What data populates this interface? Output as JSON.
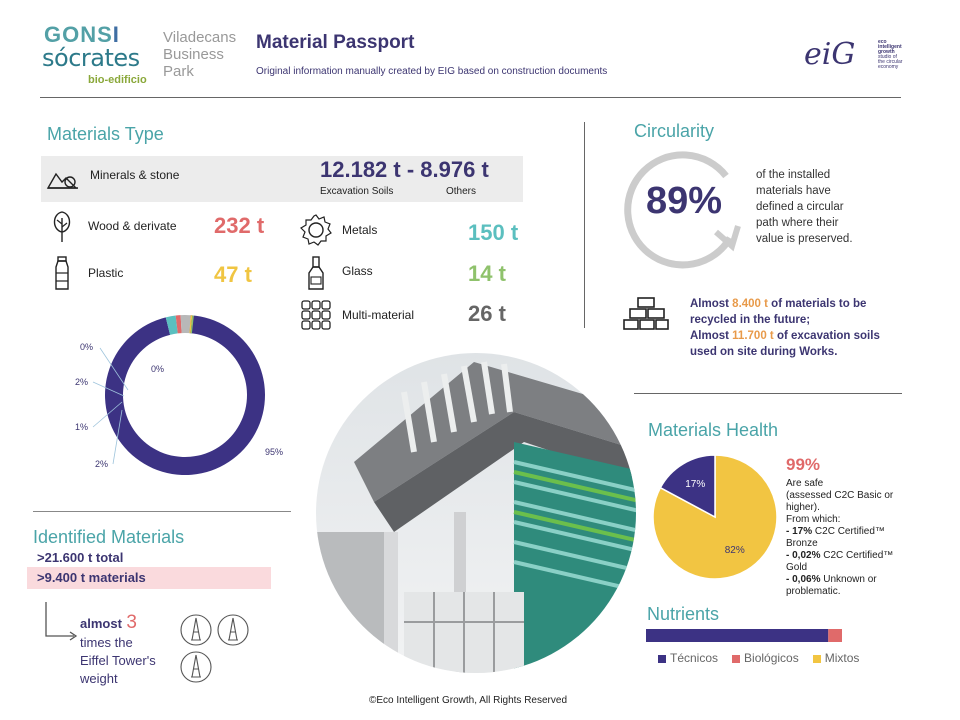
{
  "header": {
    "logo_gonsi_a": "GONS",
    "logo_gonsi_b": "I",
    "logo_socrates": "sócrates",
    "logo_bio": "bio-edificio",
    "logo_place_lines": [
      "Viladecans",
      "Business",
      "Park"
    ],
    "title": "Material Passport",
    "subtitle": "Original information manually created by EIG based on construction documents",
    "eig_mark": "eiG",
    "eig_tagline_lines": [
      "eco",
      "intelligent",
      "growth",
      "studio of",
      "the circular",
      "economy"
    ]
  },
  "materials_type": {
    "title": "Materials Type",
    "minerals": {
      "label": "Minerals & stone",
      "value": "12.182 t - 8.976 t",
      "sub_a": "Excavation Soils",
      "sub_b": "Others"
    },
    "items": [
      {
        "label": "Wood & derivate",
        "value": "232 t",
        "color": "#e06a6a"
      },
      {
        "label": "Plastic",
        "value": "47 t",
        "color": "#f0c542"
      },
      {
        "label": "Metals",
        "value": "150 t",
        "color": "#5bbfbf"
      },
      {
        "label": "Glass",
        "value": "14 t",
        "color": "#8fc26c"
      },
      {
        "label": "Multi-material",
        "value": "26 t",
        "color": "#666666"
      }
    ]
  },
  "chart_data": [
    {
      "type": "pie",
      "labels": [
        "95%",
        "2%",
        "1%",
        "2%",
        "0%",
        "0%"
      ],
      "values": [
        95,
        2,
        1,
        2,
        0,
        0
      ],
      "colors": [
        "#3c3284",
        "#5bbfbf",
        "#e06a6a",
        "#b8b8b8",
        "#f0c542",
        "#8fc26c"
      ],
      "donut": true
    },
    {
      "type": "pie",
      "labels": [
        "82%",
        "17%"
      ],
      "values": [
        82,
        17
      ],
      "colors": [
        "#f2c542",
        "#3c3284"
      ]
    },
    {
      "type": "bar",
      "orientation": "horizontal",
      "stacked": true,
      "series": [
        {
          "name": "Técnicos",
          "value": 93,
          "color": "#3c3284"
        },
        {
          "name": "Biológicos",
          "value": 7,
          "color": "#e06a6a"
        },
        {
          "name": "Mixtos",
          "value": 0,
          "color": "#f2c542"
        }
      ]
    }
  ],
  "identified": {
    "title": "Identified Materials",
    "total": ">21.600 t total",
    "materials": ">9.400 t materials",
    "almost": "almost",
    "number": "3",
    "lines": [
      "times the",
      "Eiffel Tower's",
      "weight"
    ]
  },
  "circularity": {
    "title": "Circularity",
    "percent": "89%",
    "lines": [
      "of the installed",
      "materials have",
      "defined a circular",
      "path where their",
      "value is preserved."
    ],
    "recycle_a": "Almost ",
    "recycle_a_val": "8.400 t",
    "recycle_a_end": " of materials to be",
    "recycle_b": "recycled in the future;",
    "recycle_c": "Almost ",
    "recycle_c_val": "11.700 t",
    "recycle_c_end": " of excavation soils",
    "recycle_d": "used on site during Works."
  },
  "health": {
    "title": "Materials Health",
    "percent": "99%",
    "lines": [
      "Are safe",
      "(assessed C2C Basic or",
      "higher).",
      "From which:"
    ],
    "l1_bold": "- 17%",
    "l1": "C2C Certified™ Bronze",
    "l2_bold": "- 0,02%",
    "l2": "C2C Certified™ Gold",
    "l3_bold": "- 0,06%",
    "l3": "Unknown or",
    "l4": "problematic."
  },
  "nutrients": {
    "title": "Nutrients"
  },
  "footer": "©Eco Intelligent Growth, All Rights Reserved"
}
